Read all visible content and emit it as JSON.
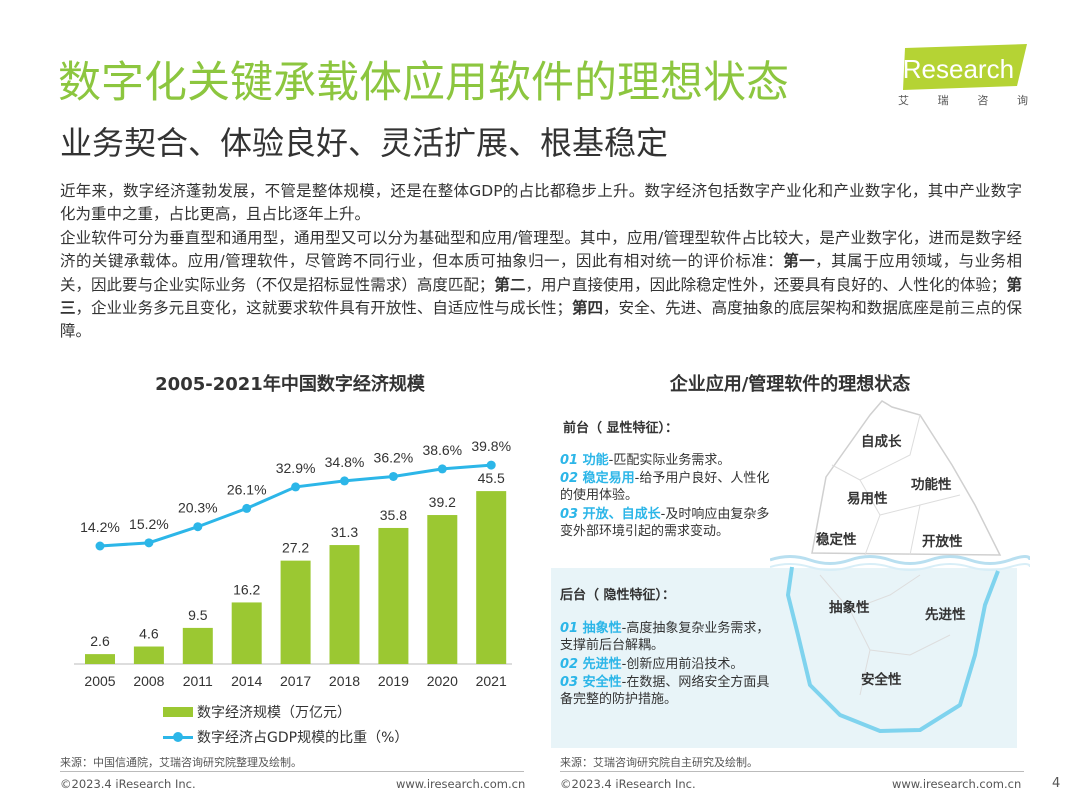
{
  "header": {
    "title": "数字化关键承载体应用软件的理想状态",
    "subtitle": "业务契合、体验良好、灵活扩展、根基稳定",
    "logo_text": "iResearch",
    "logo_sub": [
      "艾",
      "瑞",
      "咨",
      "询"
    ]
  },
  "body": {
    "para1": "近年来，数字经济蓬勃发展，不管是整体规模，还是在整体GDP的占比都稳步上升。数字经济包括数字产业化和产业数字化，其中产业数字化为重中之重，占比更高，且占比逐年上升。",
    "para2_a": "企业软件可分为垂直型和通用型，通用型又可以分为基础型和应用/管理型。其中，应用/管理型软件占比较大，是产业数字化，进而是数字经济的关键承载体。应用/管理软件，尽管跨不同行业，但本质可抽象归一，因此有相对统一的评价标准：",
    "para2_b1": "第一",
    "para2_c": "，其属于应用领域，与业务相关，因此要与企业实际业务（不仅是招标显性需求）高度匹配；",
    "para2_b2": "第二",
    "para2_d": "，用户直接使用，因此除稳定性外，还要具有良好的、人性化的体验；",
    "para2_b3": "第三",
    "para2_e": "，企业业务多元且变化，这就要求软件具有开放性、自适应性与成长性；",
    "para2_b4": "第四",
    "para2_f": "，安全、先进、高度抽象的底层架构和数据底座是前三点的保障。"
  },
  "chart_data": {
    "type": "bar",
    "title": "2005-2021年中国数字经济规模",
    "categories": [
      "2005",
      "2008",
      "2011",
      "2014",
      "2017",
      "2018",
      "2019",
      "2020",
      "2021"
    ],
    "series": [
      {
        "name": "数字经济规模（万亿元）",
        "type": "bar",
        "values": [
          2.6,
          4.6,
          9.5,
          16.2,
          27.2,
          31.3,
          35.8,
          39.2,
          45.5
        ],
        "labels": [
          "2.6",
          "4.6",
          "9.5",
          "16.2",
          "27.2",
          "31.3",
          "35.8",
          "39.2",
          "45.5"
        ],
        "color": "#9bc832"
      },
      {
        "name": "数字经济占GDP规模的比重（%）",
        "type": "line",
        "values": [
          14.2,
          15.2,
          20.3,
          26.1,
          32.9,
          34.8,
          36.2,
          38.6,
          39.8
        ],
        "labels": [
          "14.2%",
          "15.2%",
          "20.3%",
          "26.1%",
          "32.9%",
          "34.8%",
          "36.2%",
          "38.6%",
          "39.8%"
        ],
        "color": "#2cb6e8"
      }
    ],
    "ylim_bar": [
      0,
      50
    ],
    "ylim_line": [
      0,
      50
    ],
    "grid": false,
    "legend_position": "bottom"
  },
  "right": {
    "title": "企业应用/管理软件的理想状态",
    "front_title": "前台（ 显性特征）：",
    "front": [
      {
        "num": "01",
        "name": "功能",
        "desc": "匹配实际业务需求。"
      },
      {
        "num": "02",
        "name": "稳定易用",
        "desc": "给予用户良好、人性化的使用体验。"
      },
      {
        "num": "03",
        "name": "开放、自成长",
        "desc": "及时响应由复杂多变外部环境引起的需求变动。"
      }
    ],
    "back_title": "后台（ 隐性特征）：",
    "back": [
      {
        "num": "01",
        "name": "抽象性",
        "desc": "高度抽象复杂业务需求，支撑前后台解耦。"
      },
      {
        "num": "02",
        "name": "先进性",
        "desc": "创新应用前沿技术。"
      },
      {
        "num": "03",
        "name": "安全性",
        "desc": "在数据、网络安全方面具备完整的防护措施。"
      }
    ],
    "iceberg_top": [
      "自成长",
      "易用性",
      "功能性",
      "稳定性",
      "开放性"
    ],
    "iceberg_bottom": [
      "抽象性",
      "先进性",
      "安全性"
    ]
  },
  "footer": {
    "source_left": "来源：中国信通院，艾瑞咨询研究院整理及绘制。",
    "source_right": "来源：艾瑞咨询研究院自主研究及绘制。",
    "copyright": "©2023.4 iResearch Inc.",
    "website": "www.iresearch.com.cn",
    "page": "4"
  },
  "colors": {
    "brand_green": "#8cc63f",
    "bar_green": "#9bc832",
    "line_blue": "#2cb6e8",
    "ice_blue": "#7fd3ee"
  }
}
